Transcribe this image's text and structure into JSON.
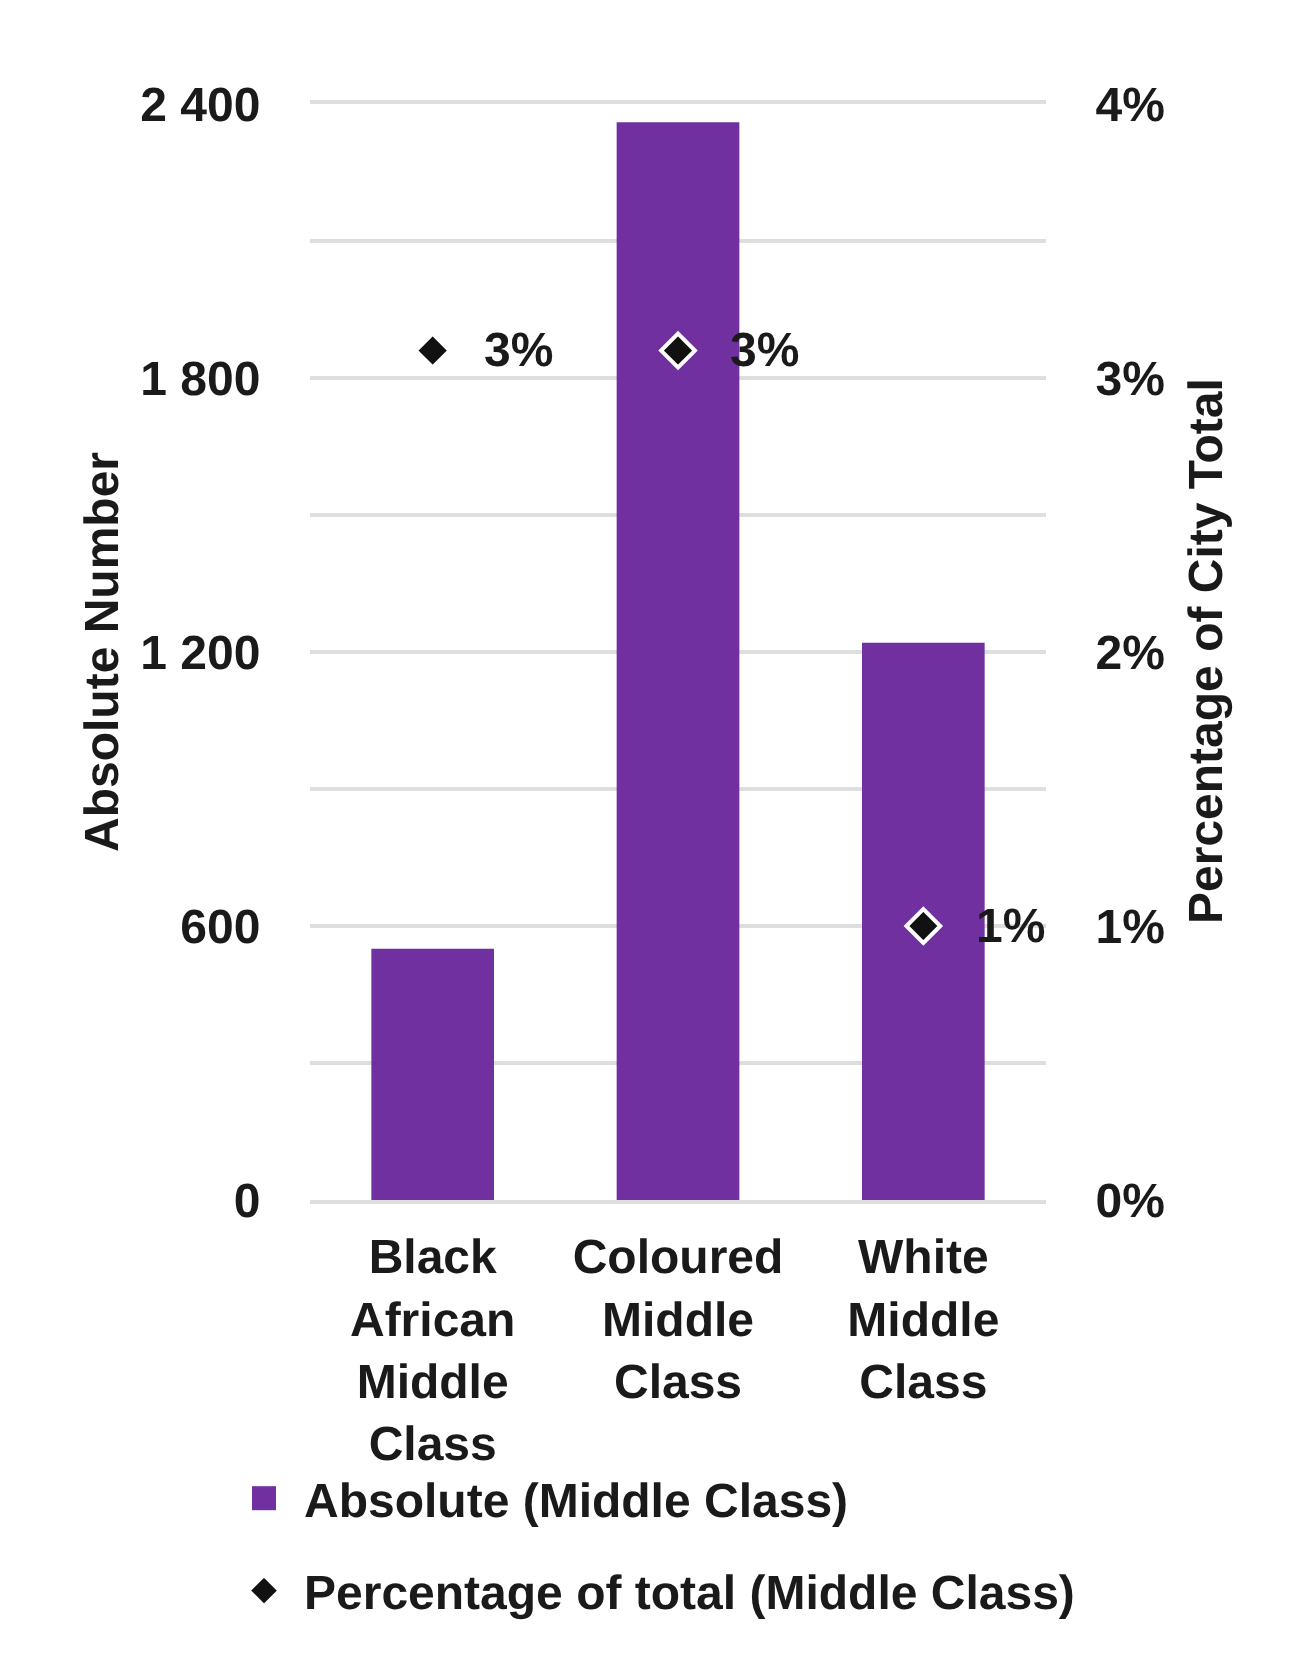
{
  "chart_data": {
    "type": "bar",
    "categories": [
      "Black African Middle Class",
      "Coloured Middle Class",
      "White Middle Class"
    ],
    "series": [
      {
        "name": "Absolute (Middle Class)",
        "color": "#7030a0",
        "values": [
          550,
          2360,
          1220
        ]
      },
      {
        "name": "Percentage of total (Middle Class)",
        "type": "scatter",
        "axis": "y2",
        "marker": "diamond",
        "color": "#111111",
        "values": [
          3.1,
          3.1,
          1.0
        ],
        "value_labels": [
          "3%",
          "3%",
          "1%"
        ]
      }
    ],
    "ylabel": "Absolute Number",
    "y2label": "Percentage of City Total",
    "ylim": [
      0,
      2400
    ],
    "yticks": [
      0,
      {
        "value": 300,
        "label": null
      },
      600,
      {
        "value": 900,
        "label": null
      },
      {
        "value": 1200,
        "label": "1 200"
      },
      {
        "value": 1500,
        "label": null
      },
      {
        "value": 1800,
        "label": "1 800"
      },
      {
        "value": 2100,
        "label": null
      },
      {
        "value": 2400,
        "label": "2 400"
      }
    ],
    "y2lim": [
      0,
      4
    ],
    "y2ticks": [
      {
        "value": 0,
        "label": "0%"
      },
      {
        "value": 1,
        "label": "1%"
      },
      {
        "value": 2,
        "label": "2%"
      },
      {
        "value": 3,
        "label": "3%"
      },
      {
        "value": 4,
        "label": "4%"
      }
    ],
    "grid": "y",
    "legend": "bottom"
  }
}
